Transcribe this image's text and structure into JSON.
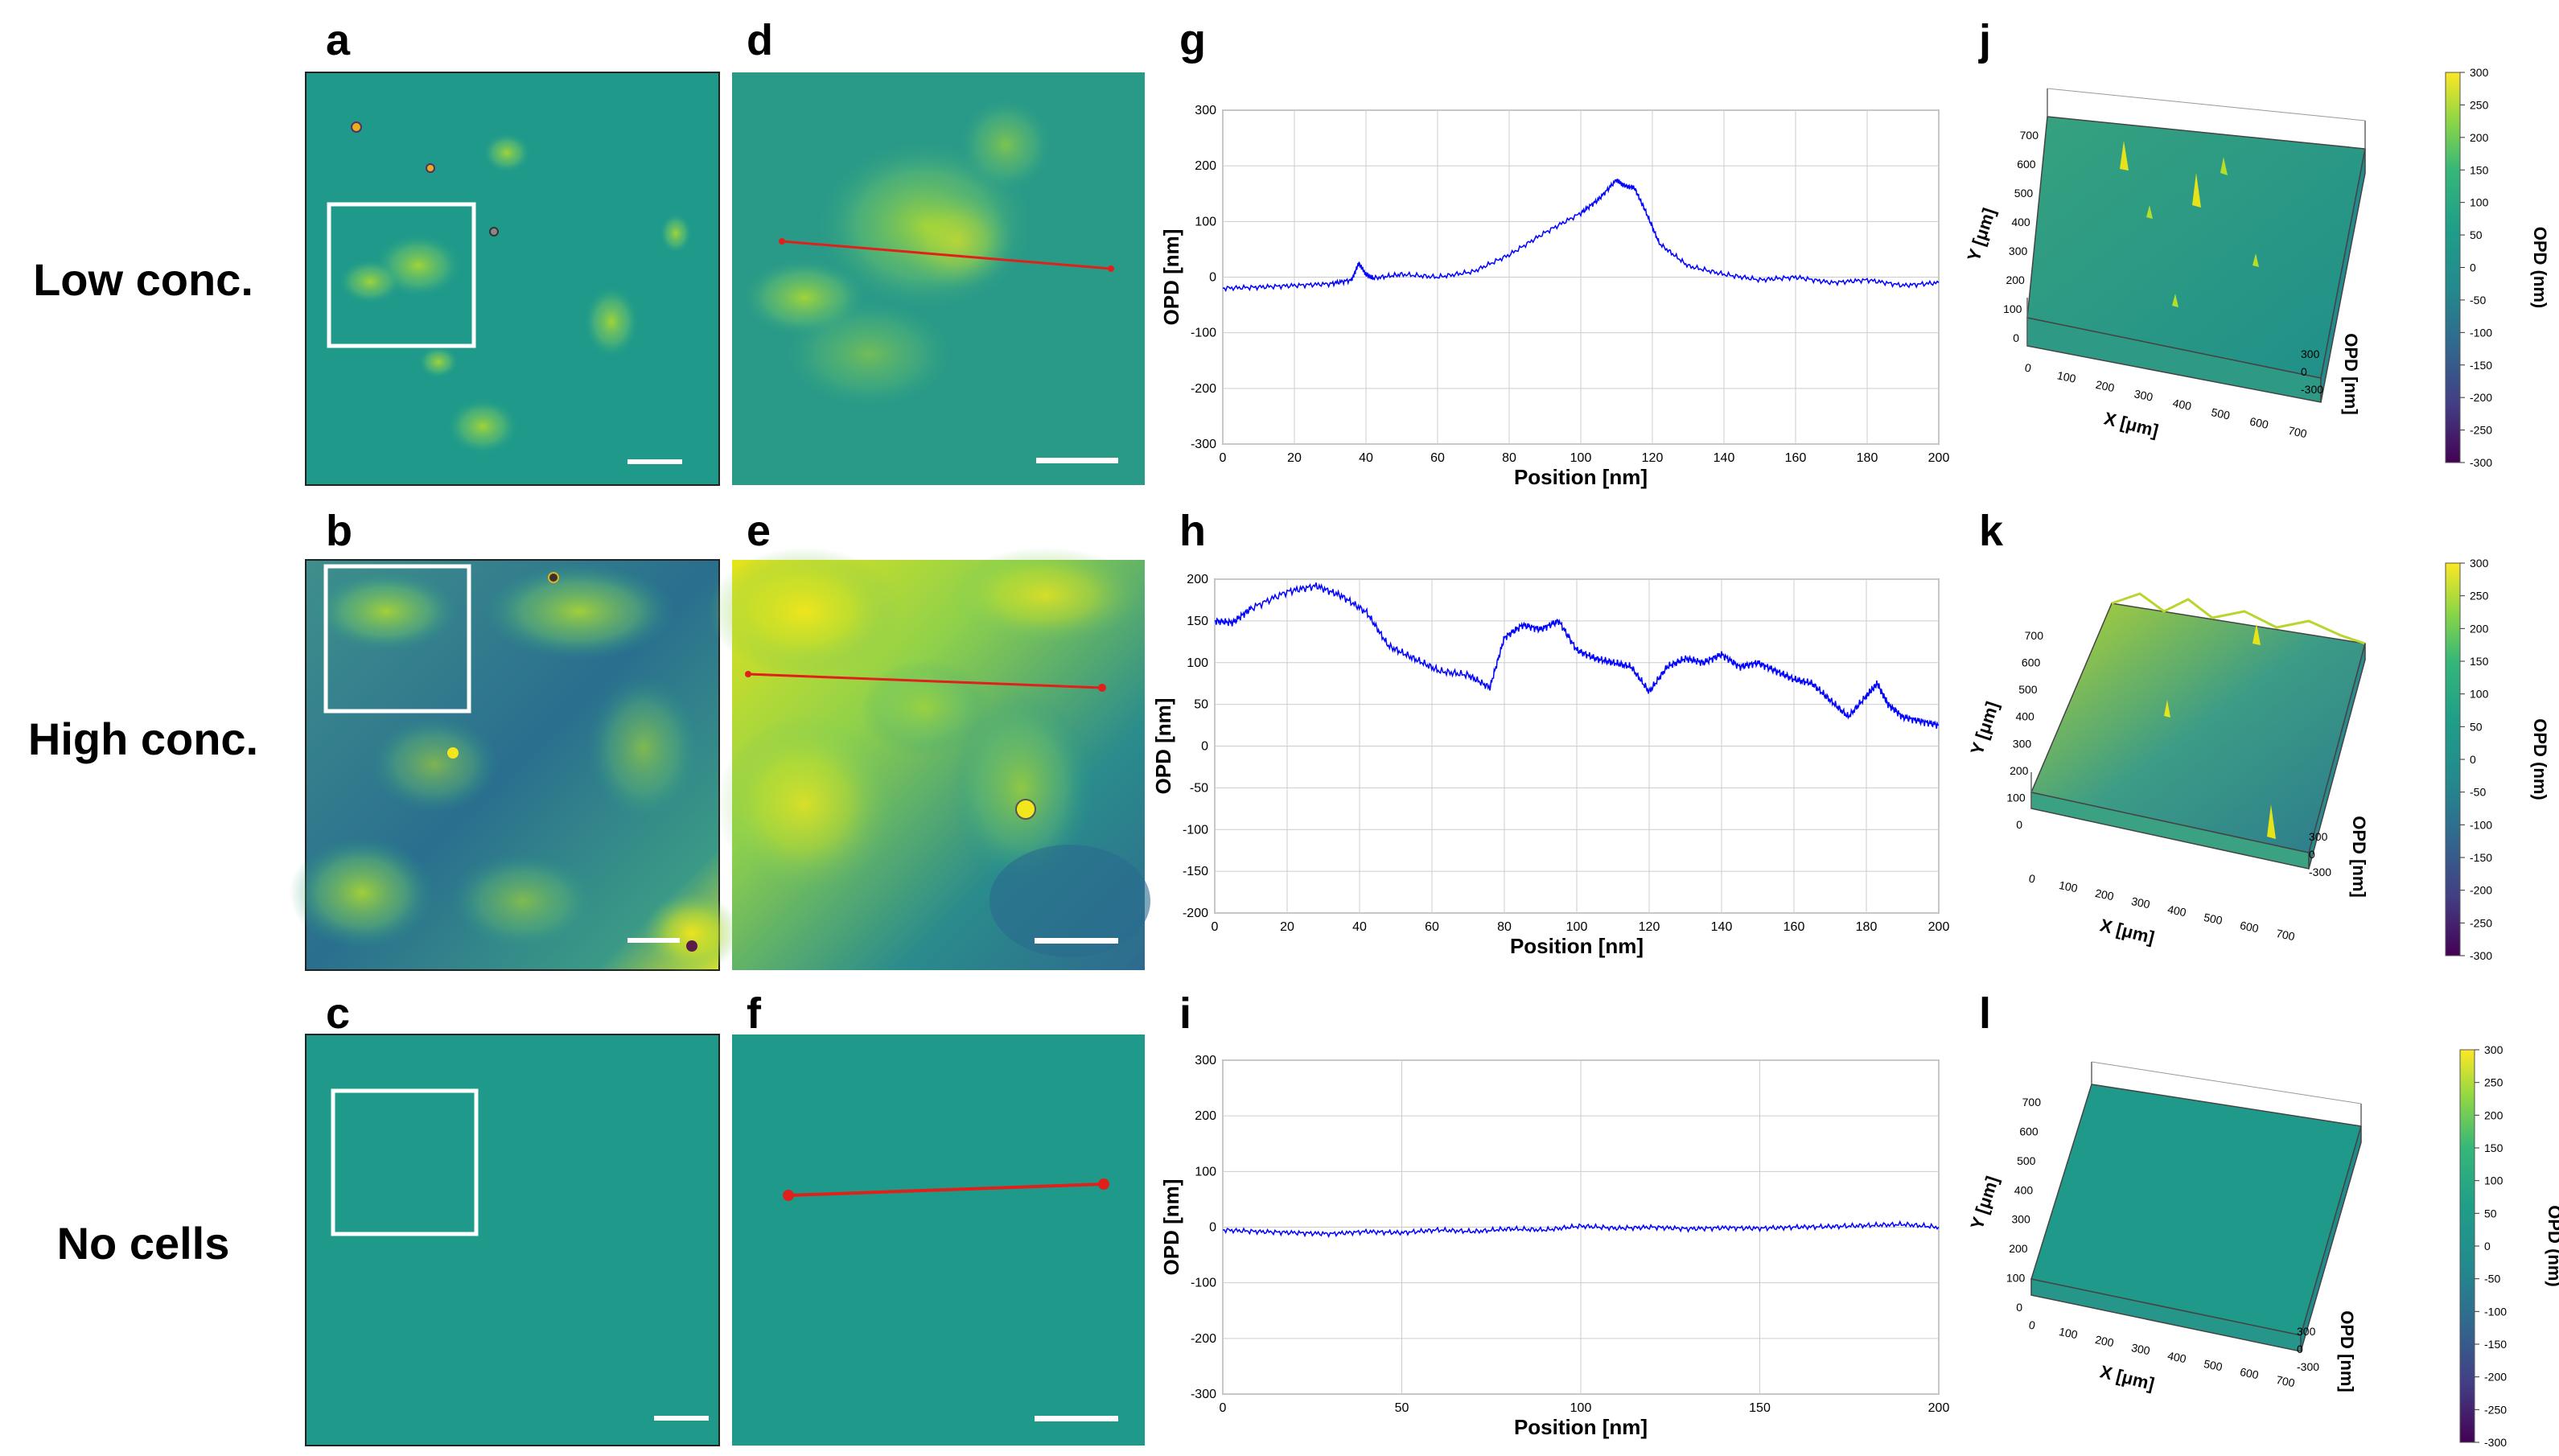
{
  "row_labels": [
    "Low conc.",
    "High conc.",
    "No cells"
  ],
  "panel_letters": [
    "a",
    "b",
    "c",
    "d",
    "e",
    "f",
    "g",
    "h",
    "i",
    "j",
    "k",
    "l"
  ],
  "colors": {
    "viridis_bg": "#1f9a8a",
    "cell_green": "#6cc46a",
    "cell_yellow": "#e6e419",
    "dark_blue": "#2b6f8e",
    "profile_line": "#0000ff",
    "scan_line": "#e0201a",
    "box": "#ffffff",
    "grid": "#cccccc"
  },
  "chart_data": [
    {
      "type": "line",
      "panel": "g",
      "xlabel": "Position [nm]",
      "ylabel": "OPD [nm]",
      "xlim": [
        0,
        200
      ],
      "ylim": [
        -300,
        300
      ],
      "xticks": [
        0,
        20,
        40,
        60,
        80,
        100,
        120,
        140,
        160,
        180,
        200
      ],
      "yticks": [
        -300,
        -200,
        -100,
        0,
        100,
        200,
        300
      ],
      "x": [
        0,
        10,
        20,
        30,
        36,
        38,
        40,
        42,
        50,
        60,
        70,
        80,
        90,
        100,
        105,
        110,
        112,
        115,
        118,
        122,
        130,
        140,
        150,
        160,
        170,
        180,
        190,
        200
      ],
      "y": [
        -20,
        -18,
        -15,
        -12,
        -5,
        25,
        5,
        -2,
        5,
        0,
        10,
        40,
        80,
        115,
        140,
        175,
        165,
        160,
        120,
        60,
        20,
        5,
        -5,
        0,
        -10,
        -5,
        -15,
        -10
      ]
    },
    {
      "type": "line",
      "panel": "h",
      "xlabel": "Position [nm]",
      "ylabel": "OPD [nm]",
      "xlim": [
        0,
        200
      ],
      "ylim": [
        -200,
        200
      ],
      "xticks": [
        0,
        20,
        40,
        60,
        80,
        100,
        120,
        140,
        160,
        180,
        200
      ],
      "yticks": [
        -200,
        -150,
        -100,
        -50,
        0,
        50,
        100,
        150,
        200
      ],
      "x": [
        0,
        5,
        10,
        20,
        28,
        35,
        42,
        48,
        55,
        62,
        70,
        76,
        80,
        85,
        90,
        95,
        100,
        105,
        110,
        115,
        120,
        125,
        130,
        135,
        140,
        145,
        150,
        155,
        160,
        165,
        170,
        175,
        180,
        183,
        186,
        190,
        195,
        200
      ],
      "y": [
        150,
        148,
        165,
        185,
        192,
        180,
        160,
        120,
        105,
        90,
        85,
        70,
        130,
        145,
        140,
        150,
        115,
        105,
        100,
        95,
        65,
        95,
        105,
        100,
        110,
        95,
        100,
        90,
        80,
        75,
        55,
        35,
        60,
        75,
        50,
        35,
        30,
        25
      ]
    },
    {
      "type": "line",
      "panel": "i",
      "xlabel": "Position [nm]",
      "ylabel": "OPD [nm]",
      "xlim": [
        0,
        200
      ],
      "ylim": [
        -300,
        300
      ],
      "xticks": [
        0,
        50,
        100,
        150,
        200
      ],
      "yticks": [
        -300,
        -200,
        -100,
        0,
        100,
        200,
        300
      ],
      "x": [
        0,
        10,
        20,
        30,
        40,
        50,
        60,
        70,
        80,
        90,
        100,
        110,
        120,
        130,
        140,
        150,
        160,
        170,
        180,
        190,
        200
      ],
      "y": [
        -5,
        -8,
        -10,
        -12,
        -8,
        -10,
        -5,
        -8,
        -3,
        -5,
        2,
        -2,
        0,
        -3,
        -1,
        -2,
        0,
        1,
        3,
        5,
        0
      ]
    }
  ],
  "colorbar": {
    "title": "OPD (nm)",
    "ticks": [
      "300",
      "250",
      "200",
      "150",
      "100",
      "50",
      "0",
      "-50",
      "-100",
      "-150",
      "-200",
      "-250",
      "-300"
    ]
  },
  "surface3d": {
    "y_title": "Y [μm]",
    "x_title": "X [μm]",
    "z_title": "OPD [nm]",
    "y_ticks": [
      "0",
      "100",
      "200",
      "300",
      "400",
      "500",
      "600",
      "700"
    ],
    "x_ticks": [
      "0",
      "100",
      "200",
      "300",
      "400",
      "500",
      "600",
      "700"
    ],
    "z_ticks": [
      "300",
      "0",
      "-300"
    ]
  }
}
